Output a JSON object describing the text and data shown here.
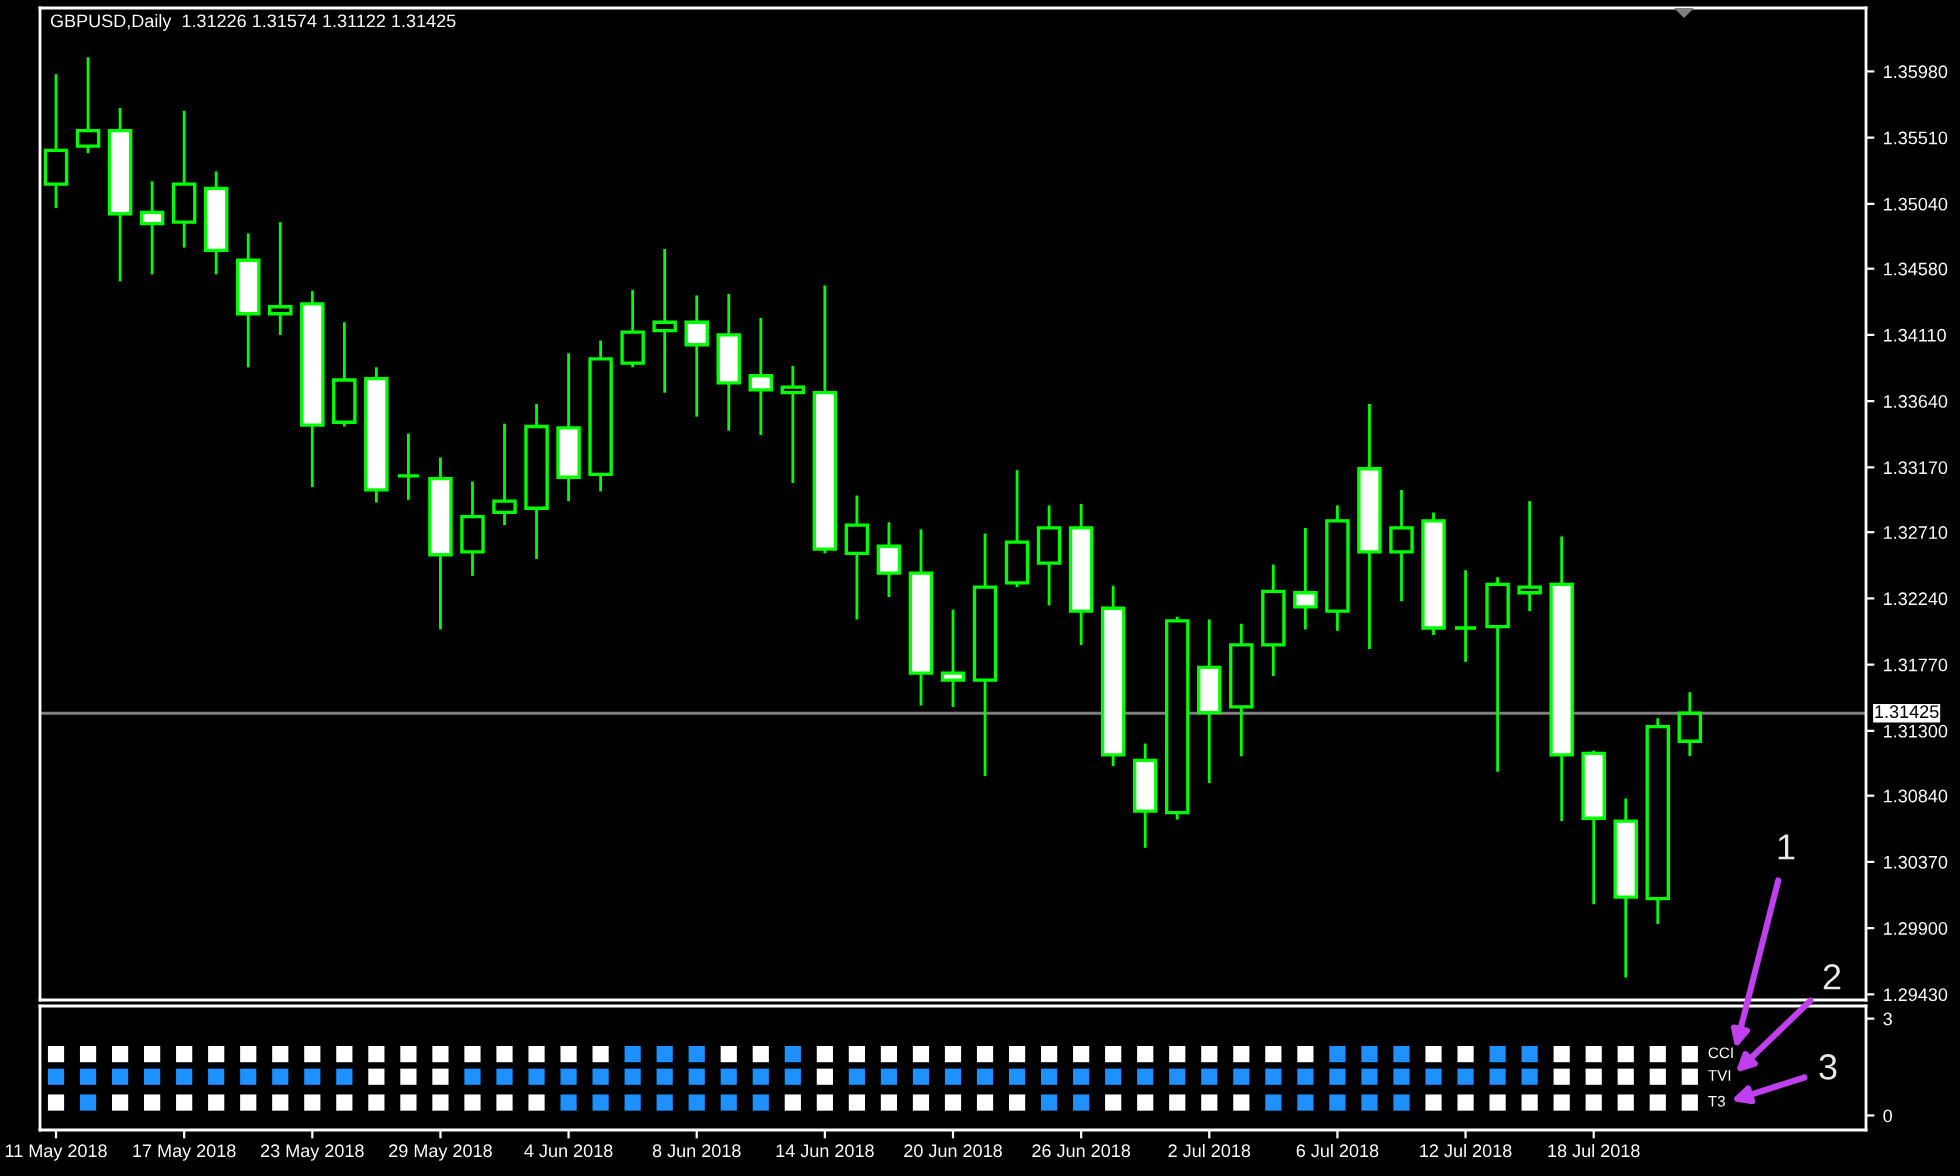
{
  "chart_data": [
    {
      "type": "candlestick",
      "title": "GBPUSD,Daily  1.31226 1.31574 1.31122 1.31425",
      "categories": [
        null,
        null,
        null,
        null,
        null,
        null,
        null,
        null,
        null,
        null,
        null,
        null,
        null,
        null,
        null,
        null,
        null,
        null,
        null,
        null,
        null,
        null,
        null,
        null,
        null,
        null,
        null,
        null,
        null,
        null,
        null,
        null,
        null,
        null,
        null,
        null,
        null,
        null,
        null,
        null,
        null,
        null,
        null,
        null,
        null,
        null,
        null,
        null,
        null,
        null,
        null,
        null,
        null,
        null,
        null,
        null,
        null
      ],
      "ohlc": [
        [
          1.3518,
          1.3596,
          1.3501,
          1.3542
        ],
        [
          1.3545,
          1.3608,
          1.354,
          1.3556
        ],
        [
          1.3556,
          1.3572,
          1.3449,
          1.3497
        ],
        [
          1.3498,
          1.352,
          1.3454,
          1.349
        ],
        [
          1.3491,
          1.357,
          1.3473,
          1.3518
        ],
        [
          1.3515,
          1.3527,
          1.3454,
          1.3471
        ],
        [
          1.3464,
          1.3483,
          1.3388,
          1.3426
        ],
        [
          1.3426,
          1.3491,
          1.3411,
          1.3431
        ],
        [
          1.3433,
          1.3442,
          1.3303,
          1.3347
        ],
        [
          1.3349,
          1.342,
          1.3346,
          1.3379
        ],
        [
          1.338,
          1.3388,
          1.3292,
          1.3301
        ],
        [
          1.3311,
          1.3341,
          1.3294,
          1.3311
        ],
        [
          1.3309,
          1.3324,
          1.3202,
          1.3255
        ],
        [
          1.3257,
          1.3307,
          1.324,
          1.3282
        ],
        [
          1.3285,
          1.3348,
          1.3276,
          1.3293
        ],
        [
          1.3288,
          1.3362,
          1.3252,
          1.3346
        ],
        [
          1.3345,
          1.3398,
          1.3293,
          1.331
        ],
        [
          1.3312,
          1.3407,
          1.33,
          1.3394
        ],
        [
          1.3391,
          1.3443,
          1.3388,
          1.3413
        ],
        [
          1.3414,
          1.3472,
          1.337,
          1.342
        ],
        [
          1.342,
          1.3439,
          1.3353,
          1.3404
        ],
        [
          1.3411,
          1.344,
          1.3343,
          1.3377
        ],
        [
          1.3382,
          1.3423,
          1.334,
          1.3372
        ],
        [
          1.337,
          1.3389,
          1.3306,
          1.3374
        ],
        [
          1.337,
          1.3446,
          1.3256,
          1.3259
        ],
        [
          1.3256,
          1.3297,
          1.3209,
          1.3276
        ],
        [
          1.3261,
          1.3278,
          1.3225,
          1.3242
        ],
        [
          1.3242,
          1.3273,
          1.3148,
          1.3171
        ],
        [
          1.3171,
          1.3216,
          1.3147,
          1.3166
        ],
        [
          1.3166,
          1.327,
          1.3098,
          1.3232
        ],
        [
          1.3235,
          1.3315,
          1.3232,
          1.3264
        ],
        [
          1.3249,
          1.329,
          1.3219,
          1.3274
        ],
        [
          1.3274,
          1.3291,
          1.3191,
          1.3215
        ],
        [
          1.3217,
          1.3233,
          1.3105,
          1.3113
        ],
        [
          1.3109,
          1.3121,
          1.3047,
          1.3073
        ],
        [
          1.3072,
          1.3211,
          1.3067,
          1.3208
        ],
        [
          1.3175,
          1.3209,
          1.3093,
          1.3143
        ],
        [
          1.3147,
          1.3206,
          1.3112,
          1.3191
        ],
        [
          1.3191,
          1.3248,
          1.3169,
          1.3229
        ],
        [
          1.3228,
          1.3274,
          1.3202,
          1.3218
        ],
        [
          1.3215,
          1.329,
          1.3201,
          1.3279
        ],
        [
          1.3316,
          1.3362,
          1.3188,
          1.3257
        ],
        [
          1.3257,
          1.3301,
          1.3222,
          1.3274
        ],
        [
          1.3279,
          1.3285,
          1.3198,
          1.3203
        ],
        [
          1.3203,
          1.3244,
          1.3179,
          1.3203
        ],
        [
          1.3204,
          1.3239,
          1.3101,
          1.3234
        ],
        [
          1.3228,
          1.3293,
          1.3215,
          1.3232
        ],
        [
          1.3234,
          1.3268,
          1.3066,
          1.3113
        ],
        [
          1.3114,
          1.3116,
          1.3007,
          1.3068
        ],
        [
          1.3066,
          1.3082,
          1.2955,
          1.3012
        ],
        [
          1.3011,
          1.3139,
          1.2993,
          1.3133
        ],
        [
          1.31226,
          1.31574,
          1.31122,
          1.31425
        ],
        null,
        null,
        null,
        null,
        null
      ],
      "color": "#00ff00",
      "ylim": [
        1.2939,
        1.3643
      ],
      "yticks": [
        {
          "value": 1.3598,
          "label": "1.35980"
        },
        {
          "value": 1.3551,
          "label": "1.35510"
        },
        {
          "value": 1.3504,
          "label": "1.35040"
        },
        {
          "value": 1.3458,
          "label": "1.34580"
        },
        {
          "value": 1.3411,
          "label": "1.34110"
        },
        {
          "value": 1.3364,
          "label": "1.33640"
        },
        {
          "value": 1.3317,
          "label": "1.33170"
        },
        {
          "value": 1.3271,
          "label": "1.32710"
        },
        {
          "value": 1.3224,
          "label": "1.32240"
        },
        {
          "value": 1.3177,
          "label": "1.31770"
        },
        {
          "value": 1.313,
          "label": "1.31300"
        },
        {
          "value": 1.3084,
          "label": "1.30840"
        },
        {
          "value": 1.3037,
          "label": "1.30370"
        },
        {
          "value": 1.299,
          "label": "1.29900"
        },
        {
          "value": 1.2943,
          "label": "1.29430"
        }
      ],
      "ref_lines": [
        {
          "axis": "y",
          "value": 1.31425,
          "label": "1.31425",
          "color": "#808080"
        }
      ],
      "tick_labels": "y"
    },
    {
      "type": "scatter",
      "categories": [
        "11 May 2018",
        null,
        null,
        null,
        "17 May 2018",
        null,
        null,
        null,
        "23 May 2018",
        null,
        null,
        null,
        "29 May 2018",
        null,
        null,
        null,
        "4 Jun 2018",
        null,
        null,
        null,
        "8 Jun 2018",
        null,
        null,
        null,
        "14 Jun 2018",
        null,
        null,
        null,
        "20 Jun 2018",
        null,
        null,
        null,
        "26 Jun 2018",
        null,
        null,
        null,
        "2 Jul 2018",
        null,
        null,
        null,
        "6 Jul 2018",
        null,
        null,
        null,
        "12 Jul 2018",
        null,
        null,
        null,
        "18 Jul 2018",
        null,
        null,
        null,
        null,
        null,
        null,
        null,
        null
      ],
      "series": [
        {
          "name": "CCI",
          "values": [
            1.9,
            1.9,
            1.9,
            1.9,
            1.9,
            1.9,
            1.9,
            1.9,
            1.9,
            1.9,
            1.9,
            1.9,
            1.9,
            1.9,
            1.9,
            1.9,
            1.9,
            1.9,
            1.9,
            1.9,
            1.9,
            1.9,
            1.9,
            1.9,
            1.9,
            1.9,
            1.9,
            1.9,
            1.9,
            1.9,
            1.9,
            1.9,
            1.9,
            1.9,
            1.9,
            1.9,
            1.9,
            1.9,
            1.9,
            1.9,
            1.9,
            1.9,
            1.9,
            1.9,
            1.9,
            1.9,
            1.9,
            1.9,
            1.9,
            1.9,
            1.9,
            1.9,
            null,
            null,
            null,
            null,
            null
          ],
          "colors": [
            "#ffffff",
            "#ffffff",
            "#ffffff",
            "#ffffff",
            "#ffffff",
            "#ffffff",
            "#ffffff",
            "#ffffff",
            "#ffffff",
            "#ffffff",
            "#ffffff",
            "#ffffff",
            "#ffffff",
            "#ffffff",
            "#ffffff",
            "#ffffff",
            "#ffffff",
            "#ffffff",
            "#1e90ff",
            "#1e90ff",
            "#1e90ff",
            "#ffffff",
            "#ffffff",
            "#1e90ff",
            "#ffffff",
            "#ffffff",
            "#ffffff",
            "#ffffff",
            "#ffffff",
            "#ffffff",
            "#ffffff",
            "#ffffff",
            "#ffffff",
            "#ffffff",
            "#ffffff",
            "#ffffff",
            "#ffffff",
            "#ffffff",
            "#ffffff",
            "#ffffff",
            "#1e90ff",
            "#1e90ff",
            "#1e90ff",
            "#ffffff",
            "#ffffff",
            "#1e90ff",
            "#1e90ff",
            "#ffffff",
            "#ffffff",
            "#ffffff",
            "#ffffff",
            "#ffffff",
            null,
            null,
            null,
            null,
            null
          ]
        },
        {
          "name": "TVI",
          "values": [
            1.2,
            1.2,
            1.2,
            1.2,
            1.2,
            1.2,
            1.2,
            1.2,
            1.2,
            1.2,
            1.2,
            1.2,
            1.2,
            1.2,
            1.2,
            1.2,
            1.2,
            1.2,
            1.2,
            1.2,
            1.2,
            1.2,
            1.2,
            1.2,
            1.2,
            1.2,
            1.2,
            1.2,
            1.2,
            1.2,
            1.2,
            1.2,
            1.2,
            1.2,
            1.2,
            1.2,
            1.2,
            1.2,
            1.2,
            1.2,
            1.2,
            1.2,
            1.2,
            1.2,
            1.2,
            1.2,
            1.2,
            1.2,
            1.2,
            1.2,
            1.2,
            1.2,
            null,
            null,
            null,
            null,
            null
          ],
          "colors": [
            "#1e90ff",
            "#1e90ff",
            "#1e90ff",
            "#1e90ff",
            "#1e90ff",
            "#1e90ff",
            "#1e90ff",
            "#1e90ff",
            "#1e90ff",
            "#1e90ff",
            "#ffffff",
            "#ffffff",
            "#ffffff",
            "#1e90ff",
            "#1e90ff",
            "#1e90ff",
            "#1e90ff",
            "#1e90ff",
            "#1e90ff",
            "#1e90ff",
            "#1e90ff",
            "#1e90ff",
            "#1e90ff",
            "#1e90ff",
            "#ffffff",
            "#1e90ff",
            "#1e90ff",
            "#1e90ff",
            "#1e90ff",
            "#1e90ff",
            "#1e90ff",
            "#1e90ff",
            "#1e90ff",
            "#1e90ff",
            "#1e90ff",
            "#1e90ff",
            "#1e90ff",
            "#1e90ff",
            "#1e90ff",
            "#1e90ff",
            "#1e90ff",
            "#1e90ff",
            "#1e90ff",
            "#1e90ff",
            "#1e90ff",
            "#1e90ff",
            "#1e90ff",
            "#ffffff",
            "#ffffff",
            "#ffffff",
            "#ffffff",
            "#ffffff",
            null,
            null,
            null,
            null,
            null
          ]
        },
        {
          "name": "T3",
          "values": [
            0.4,
            0.4,
            0.4,
            0.4,
            0.4,
            0.4,
            0.4,
            0.4,
            0.4,
            0.4,
            0.4,
            0.4,
            0.4,
            0.4,
            0.4,
            0.4,
            0.4,
            0.4,
            0.4,
            0.4,
            0.4,
            0.4,
            0.4,
            0.4,
            0.4,
            0.4,
            0.4,
            0.4,
            0.4,
            0.4,
            0.4,
            0.4,
            0.4,
            0.4,
            0.4,
            0.4,
            0.4,
            0.4,
            0.4,
            0.4,
            0.4,
            0.4,
            0.4,
            0.4,
            0.4,
            0.4,
            0.4,
            0.4,
            0.4,
            0.4,
            0.4,
            0.4,
            null,
            null,
            null,
            null,
            null
          ],
          "colors": [
            "#ffffff",
            "#1e90ff",
            "#ffffff",
            "#ffffff",
            "#ffffff",
            "#ffffff",
            "#ffffff",
            "#ffffff",
            "#ffffff",
            "#ffffff",
            "#ffffff",
            "#ffffff",
            "#ffffff",
            "#ffffff",
            "#ffffff",
            "#ffffff",
            "#1e90ff",
            "#1e90ff",
            "#1e90ff",
            "#1e90ff",
            "#1e90ff",
            "#1e90ff",
            "#1e90ff",
            "#ffffff",
            "#ffffff",
            "#ffffff",
            "#ffffff",
            "#ffffff",
            "#ffffff",
            "#ffffff",
            "#ffffff",
            "#1e90ff",
            "#1e90ff",
            "#ffffff",
            "#ffffff",
            "#ffffff",
            "#ffffff",
            "#ffffff",
            "#1e90ff",
            "#1e90ff",
            "#1e90ff",
            "#1e90ff",
            "#1e90ff",
            "#ffffff",
            "#ffffff",
            "#ffffff",
            "#ffffff",
            "#ffffff",
            "#ffffff",
            "#ffffff",
            "#ffffff",
            "#ffffff",
            null,
            null,
            null,
            null,
            null
          ]
        }
      ],
      "marker": "square",
      "ylim": [
        -0.45,
        3.39
      ],
      "yticks": [
        0,
        3
      ],
      "annotations": [
        "1",
        "2",
        "3"
      ]
    }
  ]
}
